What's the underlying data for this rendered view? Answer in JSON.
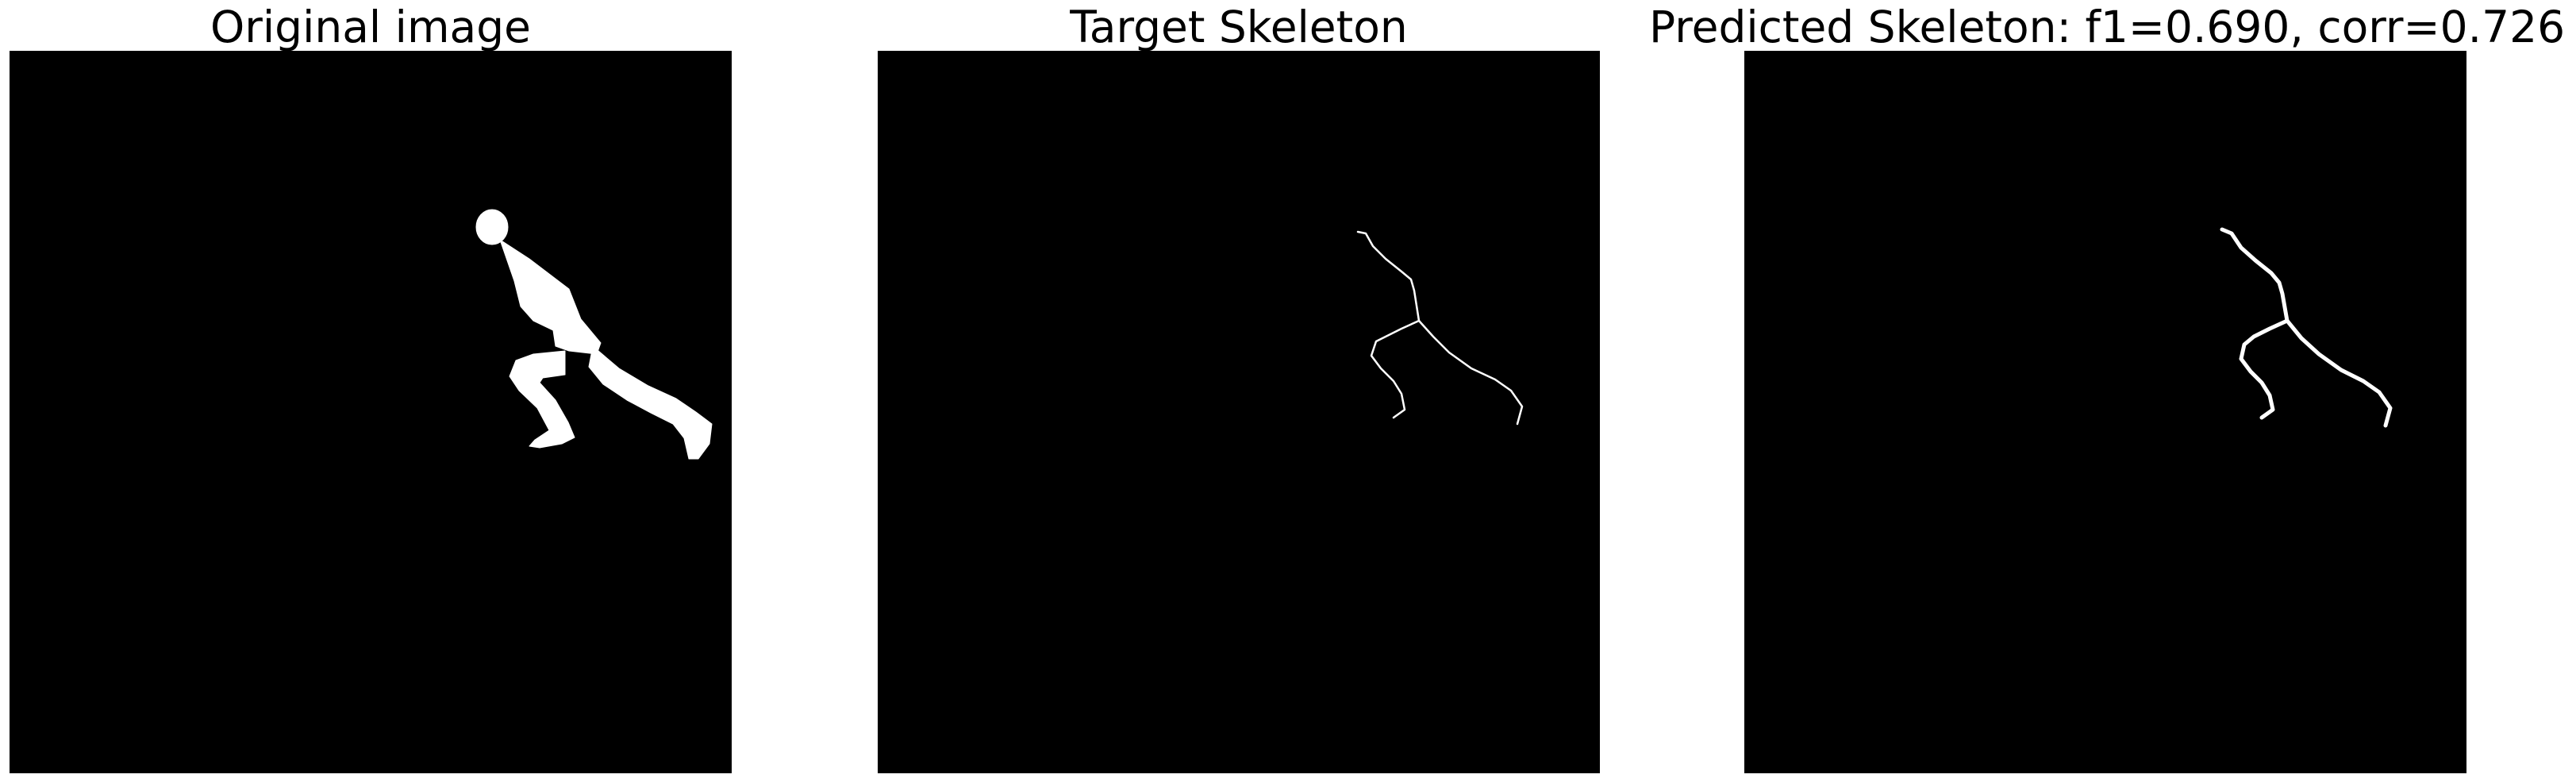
{
  "figure": {
    "panels": [
      {
        "title": "Original image"
      },
      {
        "title": "Target Skeleton"
      },
      {
        "title": "Predicted Skeleton: f1=0.690, corr=0.726"
      }
    ],
    "colors": {
      "background": "#000000",
      "foreground": "#ffffff"
    }
  }
}
